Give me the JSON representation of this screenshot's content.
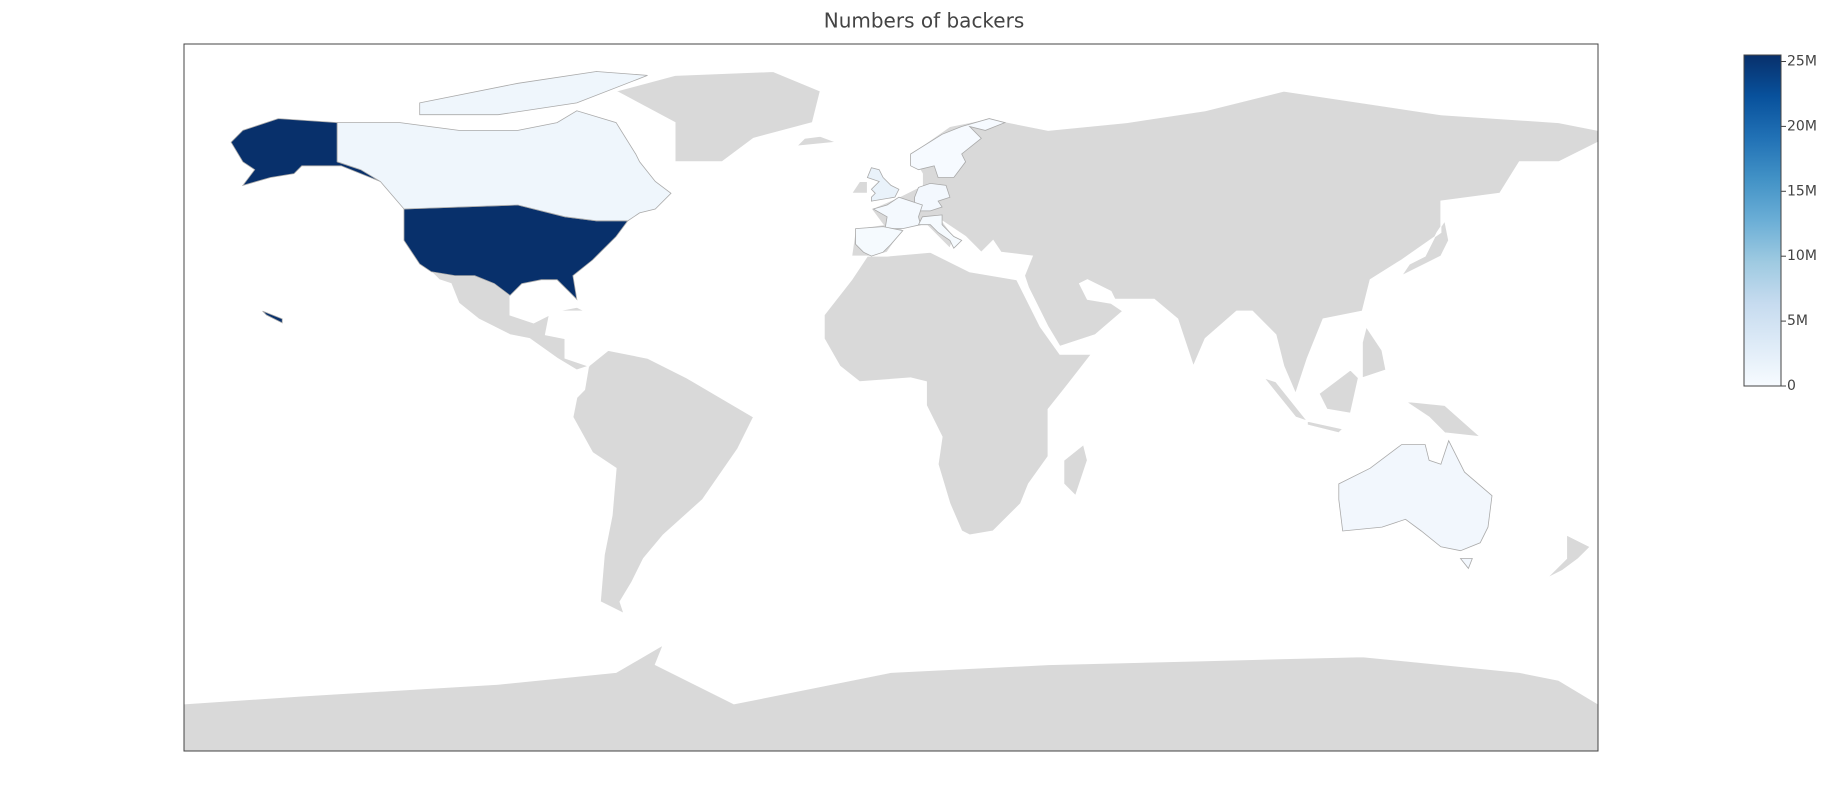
{
  "chart_data": {
    "type": "choropleth",
    "title": "Numbers of backers",
    "values": [
      25500000,
      25500000,
      1000000,
      1800000,
      700000,
      500000,
      400000,
      250000,
      200000,
      150000
    ],
    "colorscale": [
      "#f7fbff",
      "#deebf7",
      "#c6dbef",
      "#9ecae1",
      "#6baed6",
      "#4292c6",
      "#2171b5",
      "#08519c",
      "#08306b"
    ],
    "zlim": [
      0,
      25500000
    ],
    "zticks": [
      0,
      {
        "value": 5000000,
        "label": "5M"
      },
      {
        "value": 10000000,
        "label": "10M"
      },
      {
        "value": 15000000,
        "label": "15M"
      },
      {
        "value": 20000000,
        "label": "20M"
      },
      {
        "value": 25000000,
        "label": "25M"
      }
    ]
  }
}
